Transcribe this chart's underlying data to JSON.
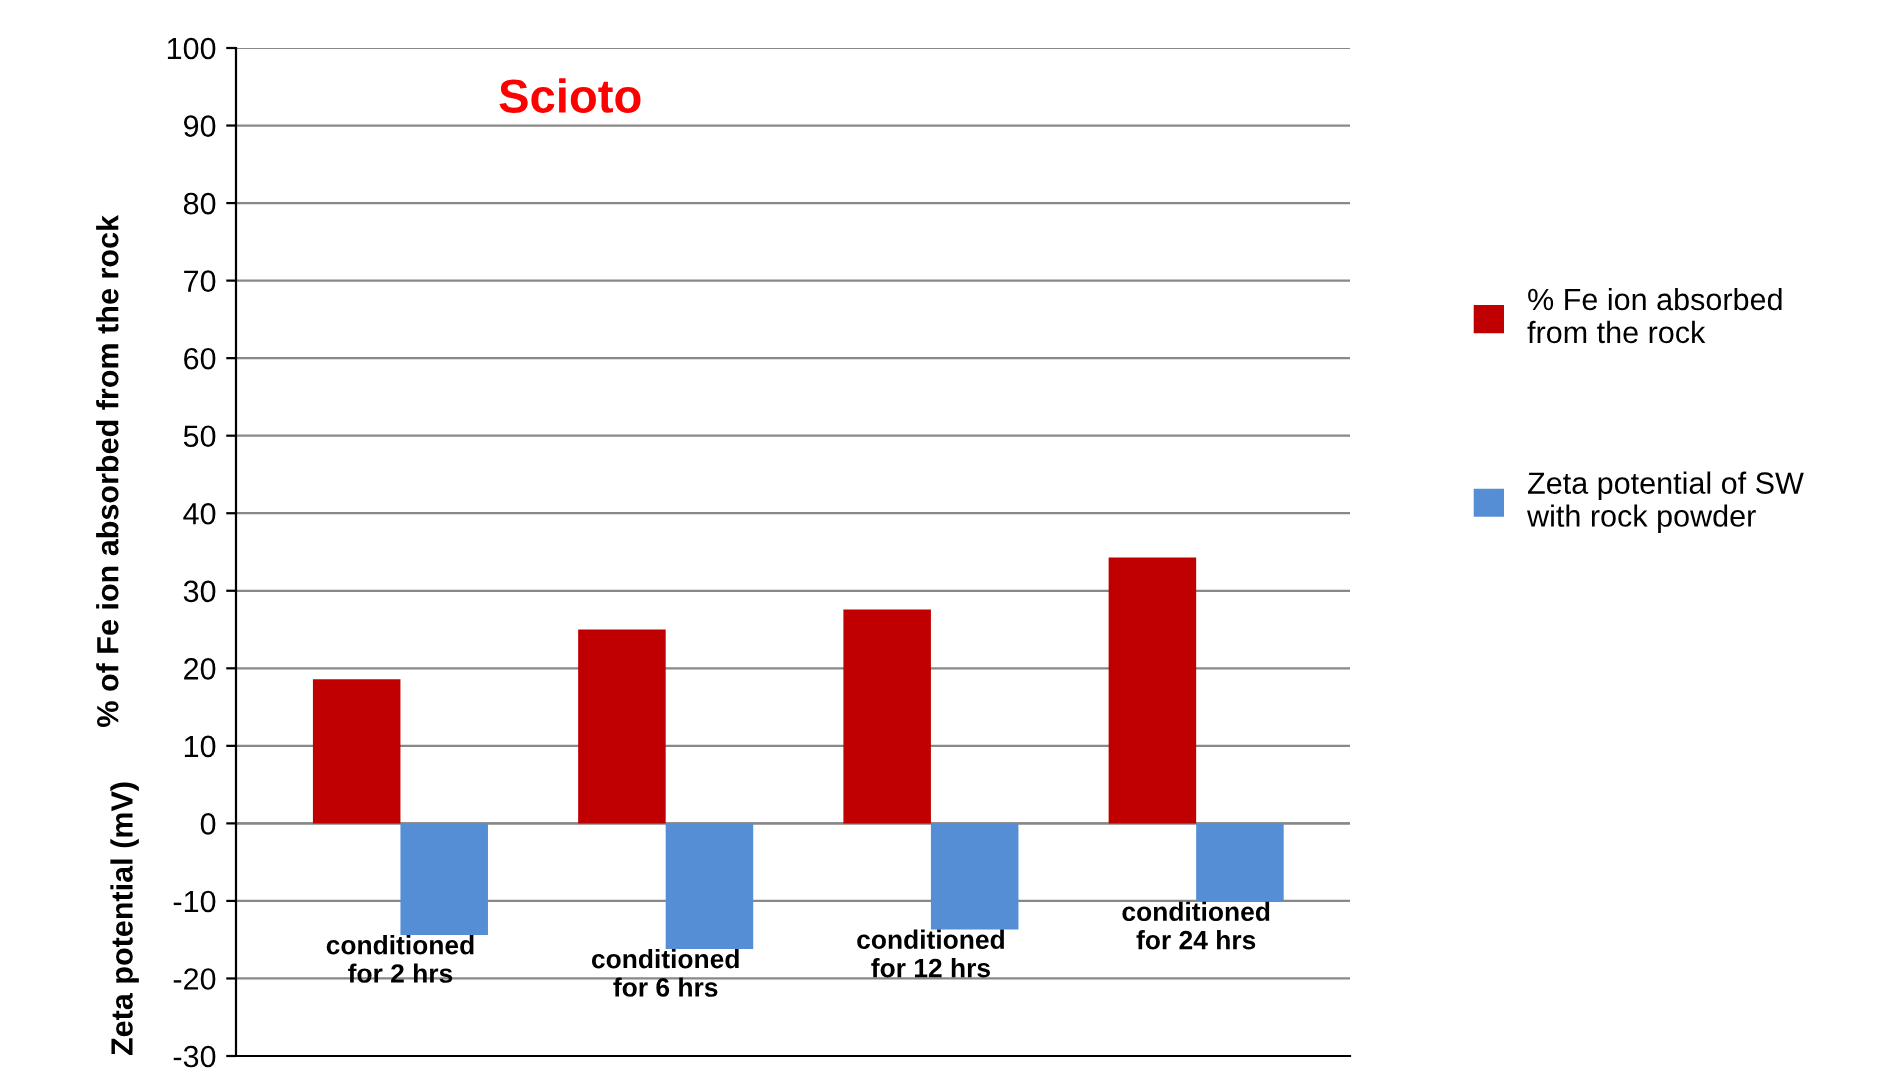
{
  "chart_data": {
    "type": "bar",
    "title": "Scioto",
    "ylabel": "% of Fe ion absorbed from the rock",
    "annotations": [
      "Zeta potential (mV)"
    ],
    "categories": [
      "conditioned\nfor 2 hrs",
      "conditioned\nfor 6 hrs",
      "conditioned\nfor 12 hrs",
      "conditioned\nfor 24 hrs"
    ],
    "series": [
      {
        "name": "% Fe ion absorbed\nfrom the rock",
        "color": "#c00000",
        "values": [
          18.6,
          25.0,
          27.6,
          34.3
        ]
      },
      {
        "name": "Zeta potential of SW\nwith rock powder",
        "color": "#558ed5",
        "values": [
          -14.4,
          -16.2,
          -13.7,
          -10.1
        ]
      }
    ],
    "ylim": [
      -30,
      100
    ],
    "yticks": [
      -30,
      -20,
      -10,
      0,
      10,
      20,
      30,
      40,
      50,
      60,
      70,
      80,
      90,
      100
    ],
    "grid": "y",
    "legend": "right"
  }
}
